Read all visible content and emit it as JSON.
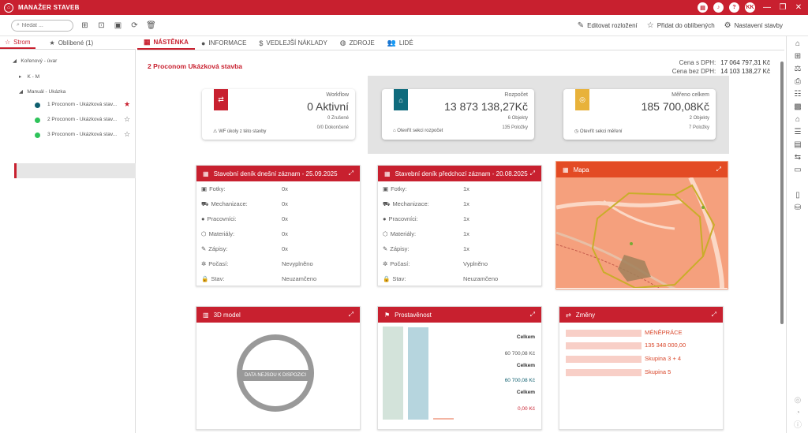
{
  "app": {
    "title": "MANAŽER STAVEB",
    "user_initials": "KK"
  },
  "toolbar": {
    "search_placeholder": "hledat ...",
    "actions": [
      "Editovat rozložení",
      "Přidat do oblíbených",
      "Nastavení stavby"
    ]
  },
  "left_tabs": [
    "Strom",
    "Oblíbené (1)"
  ],
  "tree": {
    "root": "Kořenový - úvar",
    "group1": "K - M",
    "group2": "Manuál - Ukázka",
    "items": [
      "1 Proconom - Ukázková stav...",
      "2 Proconom - Ukázková stav...",
      "3 Proconom - Ukázková stav..."
    ]
  },
  "main_tabs": [
    "NÁSTĚNKA",
    "INFORMACE",
    "VEDLEJŠÍ NÁKLADY",
    "ZDROJE",
    "LIDÉ"
  ],
  "project": {
    "title": "2 Proconom Ukázková stavba",
    "price_vat_label": "Cena s DPH:",
    "price_vat": "17 064 797,31 Kč",
    "price_novat_label": "Cena bez DPH:",
    "price_novat": "14 103 138,27 Kč"
  },
  "cards": {
    "workflow": {
      "label": "Workflow",
      "value": "0 Aktivní",
      "sub1": "0 Zrušené",
      "sub2": "0/0 Dokončené",
      "link": "WF úkoly z této stavby"
    },
    "budget": {
      "label": "Rozpočet",
      "value": "13 873 138,27Kč",
      "sub1": "6 Objekty",
      "sub2": "135 Položky",
      "link": "Otevřít sekci rozpočet"
    },
    "measured": {
      "label": "Měřeno celkem",
      "value": "185 700,08Kč",
      "sub1": "2 Objekty",
      "sub2": "7 Položky",
      "link": "Otevřít sekci měření"
    }
  },
  "diary_today": {
    "title": "Stavební deník dnešní záznam - 25.09.2025",
    "rows": [
      {
        "k": "Fotky:",
        "v": "0x"
      },
      {
        "k": "Mechanizace:",
        "v": "0x"
      },
      {
        "k": "Pracovníci:",
        "v": "0x"
      },
      {
        "k": "Materiály:",
        "v": "0x"
      },
      {
        "k": "Zápisy:",
        "v": "0x"
      },
      {
        "k": "Počasí:",
        "v": "Nevyplněno"
      },
      {
        "k": "Stav:",
        "v": "Neuzamčeno"
      }
    ]
  },
  "diary_prev": {
    "title": "Stavební deník předchozí záznam - 20.08.2025",
    "rows": [
      {
        "k": "Fotky:",
        "v": "1x"
      },
      {
        "k": "Mechanizace:",
        "v": "1x"
      },
      {
        "k": "Pracovníci:",
        "v": "1x"
      },
      {
        "k": "Materiály:",
        "v": "1x"
      },
      {
        "k": "Zápisy:",
        "v": "1x"
      },
      {
        "k": "Počasí:",
        "v": "Vyplněno"
      },
      {
        "k": "Stav:",
        "v": "Neuzamčeno"
      }
    ]
  },
  "map": {
    "title": "Mapa"
  },
  "model3d": {
    "title": "3D model",
    "empty": "DATA NEJSOU K DISPOZICI"
  },
  "progress": {
    "title": "Prostavěnost",
    "legend": [
      {
        "label": "Celkem",
        "value": "60 700,08 Kč",
        "color": "#6a9e84"
      },
      {
        "label": "Celkem",
        "value": "60 700,08 Kč",
        "color": "#2b7d96"
      },
      {
        "label": "Celkem",
        "value": "0,00 Kč",
        "color": "#e05a3a"
      }
    ],
    "bars": [
      {
        "fraction": 1.0,
        "color": "#d3e3da"
      },
      {
        "fraction": 0.99,
        "color": "#b6d5de"
      },
      {
        "fraction": 0.02,
        "color": "#f3b4a2"
      }
    ]
  },
  "changes": {
    "title": "Změny",
    "items": [
      "MÉNĚPRÁCE",
      "135 348 000,00",
      "Skupina 3 + 4",
      "Skupina 5"
    ]
  },
  "colors": {
    "brand": "#c8202f",
    "budget_teal": "#0f6b7d",
    "measure_gold": "#e8b23a"
  }
}
